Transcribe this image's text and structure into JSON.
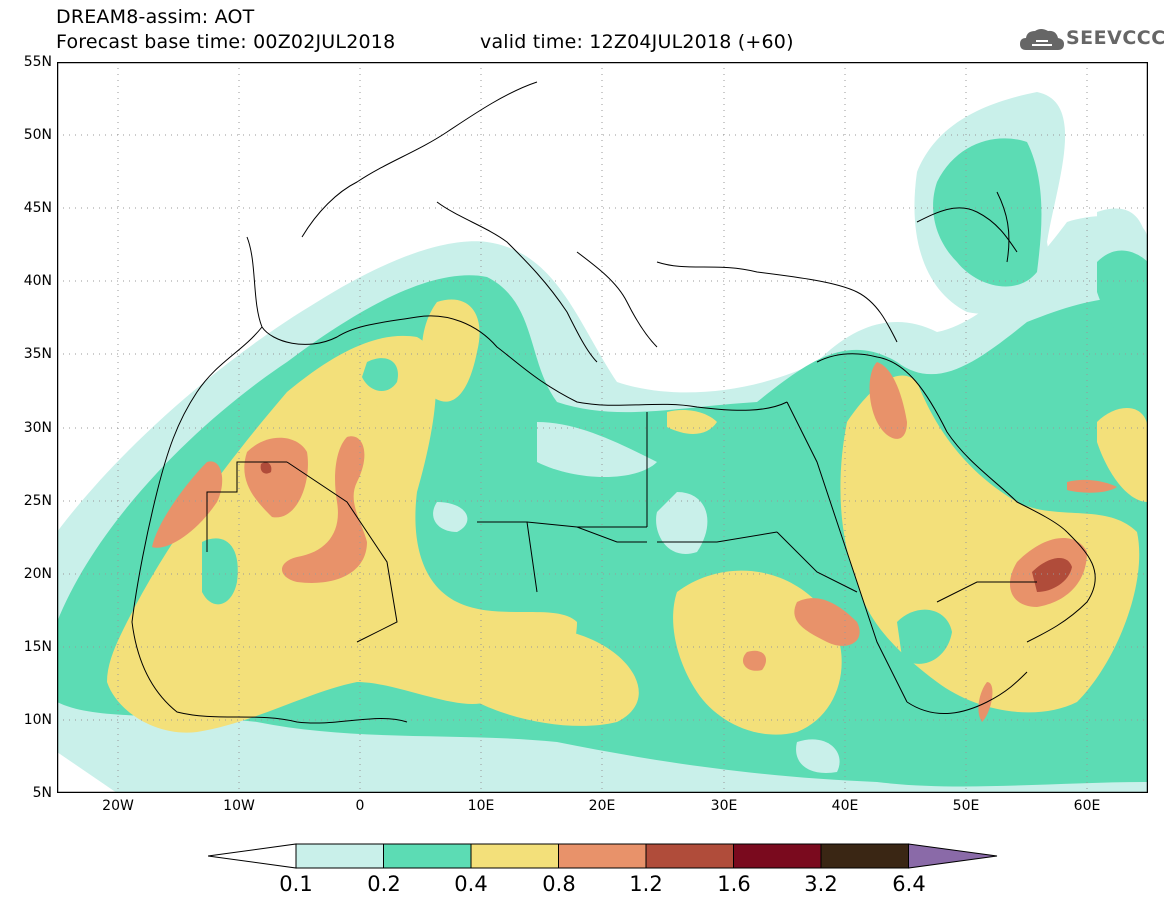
{
  "header": {
    "title": "DREAM8-assim: AOT",
    "base_time": "Forecast base time: 00Z02JUL2018",
    "valid_time": "valid time: 12Z04JUL2018 (+60)",
    "logo_text": "SEEVCCC"
  },
  "map": {
    "region": "North Africa, Mediterranean and Middle East",
    "lon_range": [
      -25,
      65
    ],
    "lat_range": [
      5,
      55
    ],
    "field": "aerosol optical thickness",
    "lat_labels": [
      "55N",
      "50N",
      "45N",
      "40N",
      "35N",
      "30N",
      "25N",
      "20N",
      "15N",
      "10N",
      "5N"
    ],
    "lon_labels": [
      "20W",
      "10W",
      "0",
      "10E",
      "20E",
      "30E",
      "40E",
      "50E",
      "60E"
    ]
  },
  "colorbar": {
    "levels": [
      "0.1",
      "0.2",
      "0.4",
      "0.8",
      "1.2",
      "1.6",
      "3.2",
      "6.4"
    ],
    "colors": [
      "#c9f0ea",
      "#5cdcb4",
      "#f3e07a",
      "#e8926a",
      "#b04c3a",
      "#7a0a1e",
      "#3a2614",
      "#8a6aa8"
    ]
  },
  "icons": [
    "cloud-logo-icon"
  ]
}
